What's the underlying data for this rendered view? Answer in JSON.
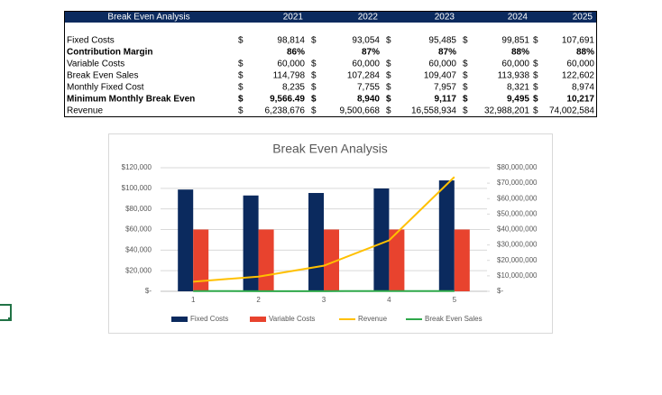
{
  "table": {
    "header": [
      "Break Even Analysis",
      "2021",
      "2022",
      "2023",
      "2024",
      "2025"
    ],
    "rows": [
      {
        "label": "Fixed Costs",
        "cells": [
          [
            "$",
            "98,814"
          ],
          [
            "$",
            "93,054"
          ],
          [
            "$",
            "95,485"
          ],
          [
            "$",
            "99,851"
          ],
          [
            "$",
            "107,691"
          ]
        ]
      },
      {
        "label": "Contribution Margin",
        "bold": true,
        "cells": [
          [
            "86%"
          ],
          [
            "87%"
          ],
          [
            "87%"
          ],
          [
            "88%"
          ],
          [
            "88%"
          ]
        ]
      },
      {
        "label": "Variable Costs",
        "cells": [
          [
            "$",
            "60,000"
          ],
          [
            "$",
            "60,000"
          ],
          [
            "$",
            "60,000"
          ],
          [
            "$",
            "60,000"
          ],
          [
            "$",
            "60,000"
          ]
        ]
      },
      {
        "label": "Break Even Sales",
        "cells": [
          [
            "$",
            "114,798"
          ],
          [
            "$",
            "107,284"
          ],
          [
            "$",
            "109,407"
          ],
          [
            "$",
            "113,938"
          ],
          [
            "$",
            "122,602"
          ]
        ]
      },
      {
        "label": "Monthly Fixed Cost",
        "cells": [
          [
            "$",
            "8,235"
          ],
          [
            "$",
            "7,755"
          ],
          [
            "$",
            "7,957"
          ],
          [
            "$",
            "8,321"
          ],
          [
            "$",
            "8,974"
          ]
        ]
      },
      {
        "label": "Minimum Monthly Break Even",
        "bold": true,
        "cells": [
          [
            "$",
            "9,566.49"
          ],
          [
            "$",
            "8,940"
          ],
          [
            "$",
            "9,117"
          ],
          [
            "$",
            "9,495"
          ],
          [
            "$",
            "10,217"
          ]
        ]
      },
      {
        "label": "Revenue",
        "cells": [
          [
            "$",
            "6,238,676"
          ],
          [
            "$",
            "9,500,668"
          ],
          [
            "$",
            "16,558,934"
          ],
          [
            "$",
            "32,988,201"
          ],
          [
            "$",
            "74,002,584"
          ]
        ]
      }
    ]
  },
  "chart_data": {
    "type": "bar",
    "title": "Break Even Analysis",
    "categories": [
      "1",
      "2",
      "3",
      "4",
      "5"
    ],
    "series": [
      {
        "name": "Fixed Costs",
        "kind": "bar",
        "color": "#0b2a5e",
        "values": [
          98814,
          93054,
          95485,
          99851,
          107691
        ]
      },
      {
        "name": "Variable Costs",
        "kind": "bar",
        "color": "#e8432e",
        "values": [
          60000,
          60000,
          60000,
          60000,
          60000
        ]
      },
      {
        "name": "Revenue",
        "kind": "line",
        "axis": "y2",
        "color": "#ffc000",
        "values": [
          6238676,
          9500668,
          16558934,
          32988201,
          74002584
        ]
      },
      {
        "name": "Break Even Sales",
        "kind": "line",
        "axis": "y2",
        "color": "#2ea84a",
        "values": [
          114798,
          107284,
          109407,
          113938,
          122602
        ]
      }
    ],
    "ylim": [
      0,
      120000
    ],
    "yticks": [
      {
        "value": 0,
        "label": "$-"
      },
      {
        "value": 20000,
        "label": "$20,000"
      },
      {
        "value": 40000,
        "label": "$40,000"
      },
      {
        "value": 60000,
        "label": "$60,000"
      },
      {
        "value": 80000,
        "label": "$80,000"
      },
      {
        "value": 100000,
        "label": "$100,000"
      },
      {
        "value": 120000,
        "label": "$120,000"
      }
    ],
    "y2lim": [
      0,
      80000000
    ],
    "y2ticks": [
      {
        "value": 0,
        "label": "$-"
      },
      {
        "value": 10000000,
        "label": "$10,000,000"
      },
      {
        "value": 20000000,
        "label": "$20,000,000"
      },
      {
        "value": 30000000,
        "label": "$30,000,000"
      },
      {
        "value": 40000000,
        "label": "$40,000,000"
      },
      {
        "value": 50000000,
        "label": "$50,000,000"
      },
      {
        "value": 60000000,
        "label": "$60,000,000"
      },
      {
        "value": 70000000,
        "label": "$70,000,000"
      },
      {
        "value": 80000000,
        "label": "$80,000,000"
      }
    ],
    "grid": true,
    "legend": "bottom"
  }
}
